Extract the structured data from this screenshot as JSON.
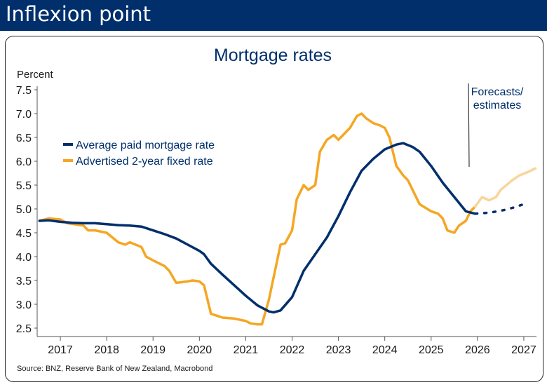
{
  "header": {
    "title": "Inflexion point"
  },
  "chart_data": {
    "type": "line",
    "title": "Mortgage rates",
    "ylabel": "Percent",
    "ylim": [
      2.5,
      7.5
    ],
    "yticks": [
      "7.5",
      "7.0",
      "6.5",
      "6.0",
      "5.5",
      "5.0",
      "4.5",
      "4.0",
      "3.5",
      "3.0",
      "2.5"
    ],
    "xlim": [
      2016.5,
      2027.5
    ],
    "xticks": [
      "2017",
      "2018",
      "2019",
      "2020",
      "2021",
      "2022",
      "2023",
      "2024",
      "2025",
      "2026",
      "2027"
    ],
    "grid": false,
    "legend_position": "top-left",
    "legend": [
      "Average paid mortgage rate",
      "Advertised 2-year fixed rate"
    ],
    "annotation": [
      "Forecasts/",
      "estimates"
    ],
    "forecast_start": 2025.95,
    "source": "Source: BNZ, Reserve Bank of New Zealand, Macrobond",
    "colors": {
      "avg": "#002f6c",
      "adv": "#f5a623",
      "adv_forecast": "#f8d59a"
    },
    "series": [
      {
        "name": "Average paid mortgage rate",
        "x": [
          2016.55,
          2016.75,
          2017.0,
          2017.25,
          2017.5,
          2017.75,
          2018.0,
          2018.25,
          2018.5,
          2018.75,
          2019.0,
          2019.25,
          2019.5,
          2019.75,
          2020.0,
          2020.1,
          2020.25,
          2020.5,
          2020.75,
          2021.0,
          2021.25,
          2021.5,
          2021.6,
          2021.75,
          2022.0,
          2022.25,
          2022.5,
          2022.75,
          2023.0,
          2023.25,
          2023.5,
          2023.75,
          2024.0,
          2024.25,
          2024.4,
          2024.6,
          2024.75,
          2025.0,
          2025.25,
          2025.5,
          2025.75,
          2025.95
        ],
        "y": [
          4.75,
          4.76,
          4.73,
          4.71,
          4.7,
          4.7,
          4.68,
          4.66,
          4.65,
          4.63,
          4.55,
          4.47,
          4.38,
          4.25,
          4.12,
          4.05,
          3.85,
          3.62,
          3.4,
          3.18,
          2.98,
          2.85,
          2.83,
          2.87,
          3.15,
          3.7,
          4.05,
          4.4,
          4.85,
          5.35,
          5.8,
          6.05,
          6.25,
          6.35,
          6.38,
          6.3,
          6.2,
          5.9,
          5.55,
          5.25,
          4.95,
          4.9
        ]
      },
      {
        "name": "Average paid mortgage rate (forecast)",
        "x": [
          2025.95,
          2026.25,
          2026.5,
          2026.75,
          2027.0
        ],
        "y": [
          4.9,
          4.92,
          4.96,
          5.02,
          5.1
        ]
      },
      {
        "name": "Advertised 2-year fixed rate",
        "x": [
          2016.55,
          2016.75,
          2017.0,
          2017.15,
          2017.3,
          2017.5,
          2017.6,
          2017.75,
          2018.0,
          2018.25,
          2018.4,
          2018.5,
          2018.75,
          2018.85,
          2019.0,
          2019.25,
          2019.35,
          2019.5,
          2019.75,
          2019.85,
          2020.0,
          2020.1,
          2020.25,
          2020.5,
          2020.75,
          2021.0,
          2021.1,
          2021.25,
          2021.35,
          2021.5,
          2021.75,
          2021.85,
          2022.0,
          2022.1,
          2022.25,
          2022.35,
          2022.5,
          2022.6,
          2022.75,
          2022.9,
          2023.0,
          2023.1,
          2023.25,
          2023.4,
          2023.5,
          2023.6,
          2023.75,
          2023.9,
          2024.0,
          2024.1,
          2024.25,
          2024.4,
          2024.5,
          2024.75,
          2025.0,
          2025.15,
          2025.25,
          2025.35,
          2025.5,
          2025.6,
          2025.75,
          2025.85,
          2025.95
        ],
        "y": [
          4.75,
          4.8,
          4.78,
          4.7,
          4.68,
          4.65,
          4.55,
          4.55,
          4.5,
          4.3,
          4.25,
          4.3,
          4.2,
          4.0,
          3.92,
          3.8,
          3.7,
          3.45,
          3.48,
          3.5,
          3.48,
          3.4,
          2.8,
          2.72,
          2.7,
          2.65,
          2.6,
          2.58,
          2.58,
          3.1,
          4.25,
          4.28,
          4.55,
          5.2,
          5.5,
          5.4,
          5.5,
          6.2,
          6.45,
          6.55,
          6.45,
          6.55,
          6.7,
          6.95,
          7.0,
          6.9,
          6.8,
          6.75,
          6.7,
          6.5,
          5.9,
          5.7,
          5.6,
          5.1,
          4.95,
          4.9,
          4.8,
          4.55,
          4.5,
          4.65,
          4.75,
          4.95,
          5.05
        ]
      },
      {
        "name": "Advertised 2-year fixed rate (forecast)",
        "x": [
          2025.95,
          2026.1,
          2026.25,
          2026.4,
          2026.5,
          2026.75,
          2026.9,
          2027.1,
          2027.25
        ],
        "y": [
          5.05,
          5.25,
          5.18,
          5.25,
          5.4,
          5.6,
          5.7,
          5.78,
          5.85
        ]
      }
    ]
  }
}
